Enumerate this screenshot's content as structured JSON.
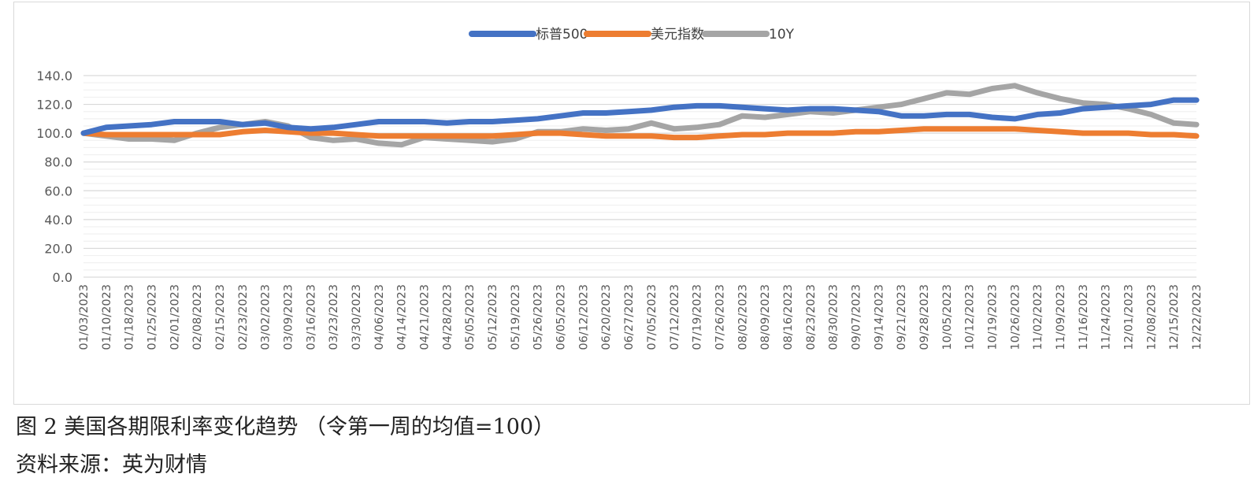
{
  "caption": "图 2 美国各期限利率变化趋势 （令第一周的均值=100）",
  "source": "资料来源：英为财情",
  "chart_data": {
    "type": "line",
    "title": "",
    "legend_position": "top-center",
    "grid": true,
    "ylim": [
      0,
      140
    ],
    "yticks": [
      "0.0",
      "20.0",
      "40.0",
      "60.0",
      "80.0",
      "100.0",
      "120.0",
      "140.0"
    ],
    "xticks": [
      "01/03/2023",
      "01/10/2023",
      "01/18/2023",
      "01/25/2023",
      "02/01/2023",
      "02/08/2023",
      "02/15/2023",
      "02/23/2023",
      "03/02/2023",
      "03/09/2023",
      "03/16/2023",
      "03/23/2023",
      "03/30/2023",
      "04/06/2023",
      "04/14/2023",
      "04/21/2023",
      "04/28/2023",
      "05/05/2023",
      "05/12/2023",
      "05/19/2023",
      "05/26/2023",
      "06/05/2023",
      "06/12/2023",
      "06/20/2023",
      "06/27/2023",
      "07/05/2023",
      "07/12/2023",
      "07/19/2023",
      "07/26/2023",
      "08/02/2023",
      "08/09/2023",
      "08/16/2023",
      "08/23/2023",
      "08/30/2023",
      "09/07/2023",
      "09/14/2023",
      "09/21/2023",
      "09/28/2023",
      "10/05/2023",
      "10/12/2023",
      "10/19/2023",
      "10/26/2023",
      "11/02/2023",
      "11/09/2023",
      "11/16/2023",
      "11/24/2023",
      "12/01/2023",
      "12/08/2023",
      "12/15/2023",
      "12/22/2023"
    ],
    "series": [
      {
        "name": "标普500",
        "color": "#4472C4",
        "values": [
          100,
          104,
          105,
          106,
          108,
          108,
          108,
          106,
          107,
          104,
          103,
          104,
          106,
          108,
          108,
          108,
          107,
          108,
          108,
          109,
          110,
          112,
          114,
          114,
          115,
          116,
          118,
          119,
          119,
          118,
          117,
          116,
          117,
          117,
          116,
          115,
          112,
          112,
          113,
          113,
          111,
          110,
          113,
          114,
          117,
          118,
          119,
          120,
          123,
          123
        ]
      },
      {
        "name": "美元指数",
        "color": "#ED7D31",
        "values": [
          100,
          99,
          99,
          99,
          99,
          99,
          99,
          101,
          102,
          101,
          100,
          100,
          99,
          98,
          98,
          98,
          98,
          98,
          98,
          99,
          100,
          100,
          99,
          98,
          98,
          98,
          97,
          97,
          98,
          99,
          99,
          100,
          100,
          100,
          101,
          101,
          102,
          103,
          103,
          103,
          103,
          103,
          102,
          101,
          100,
          100,
          100,
          99,
          99,
          98
        ]
      },
      {
        "name": "10Y",
        "color": "#A5A5A5",
        "values": [
          100,
          98,
          96,
          96,
          95,
          100,
          104,
          106,
          108,
          105,
          97,
          95,
          96,
          93,
          92,
          97,
          96,
          95,
          94,
          96,
          101,
          101,
          103,
          102,
          103,
          107,
          103,
          104,
          106,
          112,
          111,
          113,
          115,
          114,
          116,
          118,
          120,
          124,
          128,
          127,
          131,
          133,
          128,
          124,
          121,
          120,
          117,
          113,
          107,
          106
        ]
      }
    ]
  }
}
